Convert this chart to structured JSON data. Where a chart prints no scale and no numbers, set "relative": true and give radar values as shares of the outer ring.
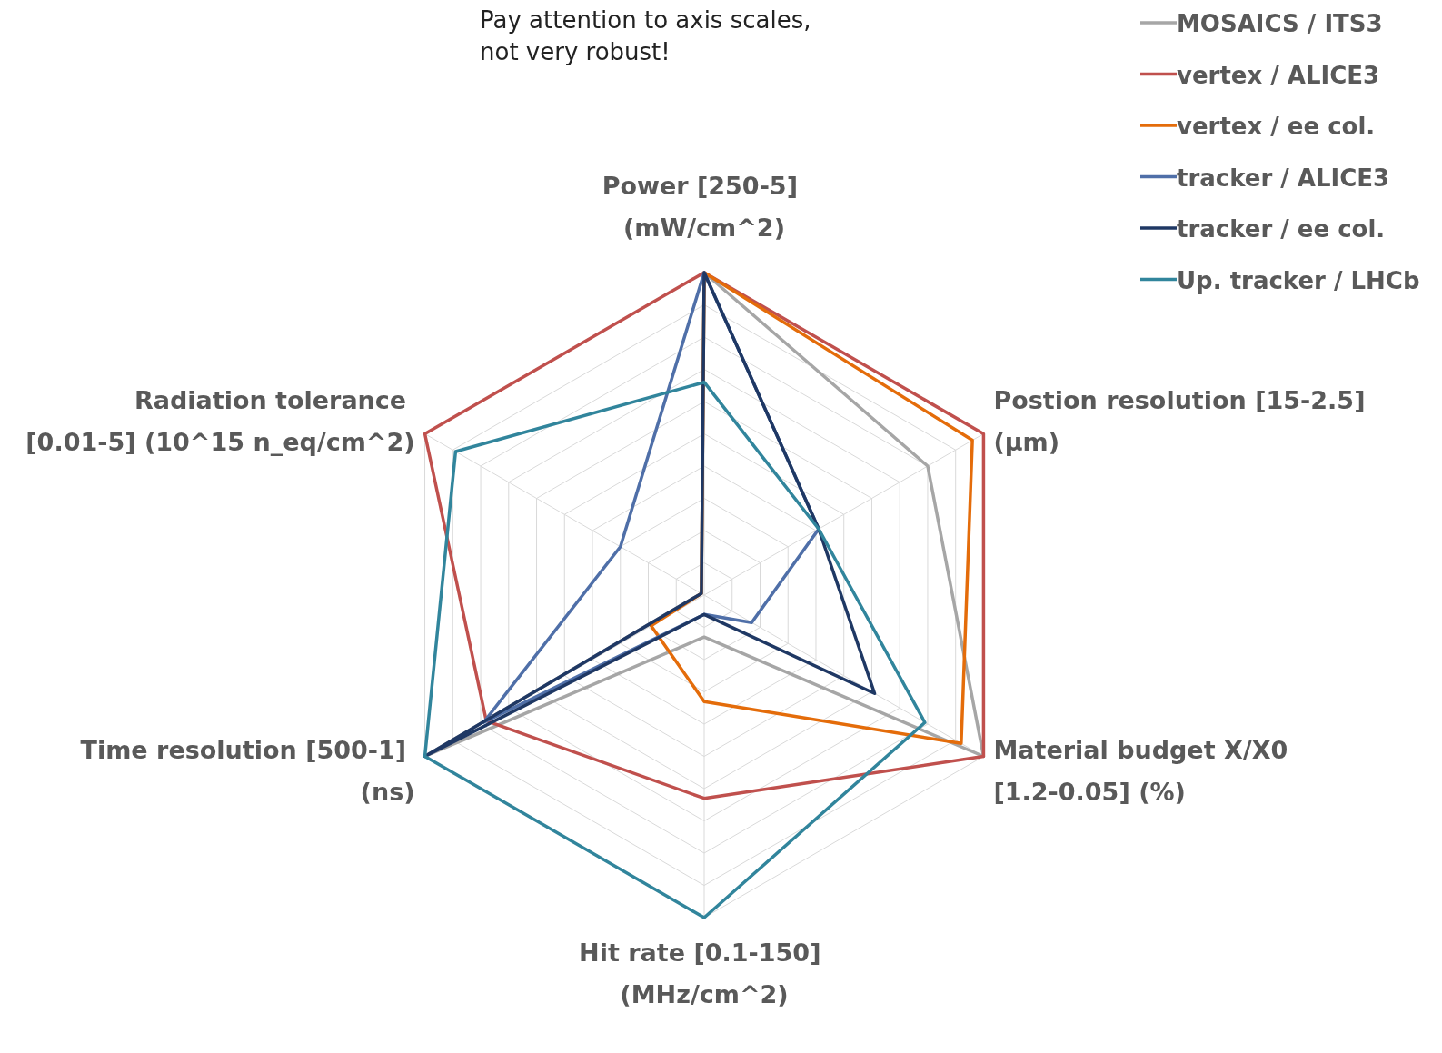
{
  "chart_data": {
    "type": "radar",
    "relative": true,
    "grid": true,
    "legend": "top right",
    "annotations": [
      "Pay attention to axis scales,\nnot very robust!"
    ],
    "categories": [
      "Power [250-5] (mW/cm^2)",
      "Postion resolution [15-2.5] (µm)",
      "Material budget X/X0 [1.2-0.05] (%)",
      "Hit rate [0.1-150] (MHz/cm^2)",
      "Time resolution [500-1] (ns)",
      "Radiation tolerance [0.01-5] (10^15 n_eq/cm^2)"
    ],
    "series": [
      {
        "name": "MOSAICS / ITS3",
        "color": "#a6a6a6",
        "values": [
          1,
          0.8,
          1,
          0.13,
          1,
          0.01
        ]
      },
      {
        "name": "vertex / ALICE3",
        "color": "#c0504d",
        "values": [
          1,
          1,
          1,
          0.63,
          0.78,
          1
        ]
      },
      {
        "name": "vertex / ee col.",
        "color": "#e46c0a",
        "values": [
          1,
          0.96,
          0.92,
          0.33,
          0.19,
          0.01
        ]
      },
      {
        "name": "tracker / ALICE3",
        "color": "#4f6fa8",
        "values": [
          1,
          0.41,
          0.17,
          0.06,
          0.79,
          0.3
        ]
      },
      {
        "name": "tracker / ee col.",
        "color": "#1f3864",
        "values": [
          1,
          0.41,
          0.61,
          0.06,
          1,
          0.01
        ]
      },
      {
        "name": "Up. tracker / LHCb",
        "color": "#31859c",
        "values": [
          0.66,
          0.41,
          0.79,
          1,
          1,
          0.89
        ]
      }
    ]
  }
}
